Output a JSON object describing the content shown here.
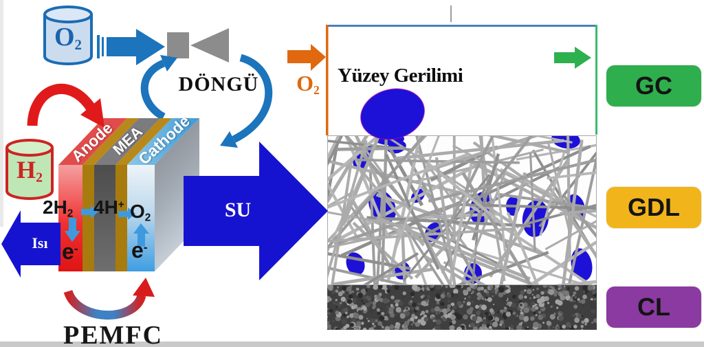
{
  "left_diagram": {
    "o2_tank": {
      "base": "O",
      "sub": "2"
    },
    "h2_tank": {
      "base": "H",
      "sub": "2"
    },
    "cycle_label": "DÖNGÜ",
    "stack": {
      "anode_label": "Anode",
      "mea_label": "MEA",
      "cathode_label": "Cathode"
    },
    "reaction": {
      "hydrogen": {
        "base": "2H",
        "sub": "2"
      },
      "protons": {
        "base": "4H",
        "sup": "+"
      },
      "oxygen": {
        "base": "O",
        "sub": "2"
      },
      "electron_anode": {
        "base": "e",
        "sup": "-"
      },
      "electron_cathode": {
        "base": "e",
        "sup": "-"
      }
    },
    "heat_label": "Isı",
    "title": "PEMFC"
  },
  "water_arrow_label": "SU",
  "right_panel": {
    "o2_inlet": {
      "base": "O",
      "sub": "2"
    },
    "surface_tension_title": "Yüzey Gerilimi",
    "legend": [
      {
        "label": "GC",
        "color": "#2fae4d"
      },
      {
        "label": "GDL",
        "color": "#f1b51b"
      },
      {
        "label": "CL",
        "color": "#8a3aa0"
      }
    ]
  },
  "colors": {
    "flow_blue": "#1b74bc",
    "deep_blue": "#1613d0",
    "droplet_blue": "#1d11d8",
    "orange": "#e0680e",
    "green": "#2db04e",
    "red": "#e01a1a",
    "box_border_top": "#4b80ba",
    "box_border_right": "#3bbb6b"
  }
}
